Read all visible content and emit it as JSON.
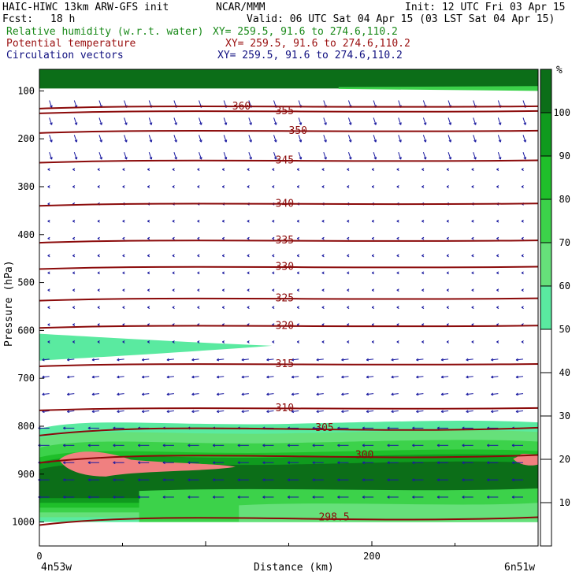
{
  "header": {
    "model": "HAIC-HIWC 13km ARW-GFS init",
    "institution": "NCAR/MMM",
    "init": "Init: 12 UTC Fri 03 Apr 15",
    "fcst_label": "Fcst:",
    "fcst_value": "18 h",
    "valid": "Valid: 06 UTC Sat 04 Apr 15 (03 LST Sat 04 Apr 15)",
    "fields": [
      {
        "label": "Relative humidity (w.r.t. water)",
        "xy": "XY= 259.5, 91.6 to 274.6,110.2",
        "color": "#1a8a1a"
      },
      {
        "label": "Potential temperature",
        "xy": "XY= 259.5, 91.6 to 274.6,110.2",
        "color": "#9a1010"
      },
      {
        "label": "Circulation vectors",
        "xy": "XY= 259.5, 91.6 to 274.6,110.2",
        "color": "#101080"
      }
    ]
  },
  "chart_data": {
    "type": "cross-section",
    "xlabel": "Distance (km)",
    "ylabel": "Pressure (hPa)",
    "x_range": [
      0,
      300
    ],
    "x_ticks": [
      0,
      200
    ],
    "y_range": [
      1050,
      55
    ],
    "y_ticks": [
      100,
      200,
      300,
      400,
      500,
      600,
      700,
      800,
      900,
      1000
    ],
    "y_scale": "linear, inverted",
    "left_endpoint": "4n53w",
    "right_endpoint": "6n51w",
    "colorbar": {
      "unit": "%",
      "ticks": [
        10,
        20,
        30,
        40,
        50,
        60,
        70,
        80,
        90,
        100
      ],
      "bands": [
        {
          "from": 50,
          "to": 60,
          "color": "#5aeaa0"
        },
        {
          "from": 60,
          "to": 70,
          "color": "#66e07a"
        },
        {
          "from": 70,
          "to": 80,
          "color": "#3cd24a"
        },
        {
          "from": 80,
          "to": 90,
          "color": "#1fbf2a"
        },
        {
          "from": 90,
          "to": 100,
          "color": "#0f9a1e"
        },
        {
          "from": 100,
          "to": 110,
          "color": "#0c6e18"
        },
        {
          "from": 110,
          "to": 200,
          "color": "#f08080"
        }
      ]
    },
    "theta_contours": [
      {
        "label": "360",
        "p": 132
      },
      {
        "label": "355",
        "p": 142
      },
      {
        "label": "350",
        "p": 183
      },
      {
        "label": "345",
        "p": 245
      },
      {
        "label": "340",
        "p": 335
      },
      {
        "label": "335",
        "p": 412
      },
      {
        "label": "330",
        "p": 467
      },
      {
        "label": "325",
        "p": 533
      },
      {
        "label": "320",
        "p": 590
      },
      {
        "label": "315",
        "p": 670
      },
      {
        "label": "310",
        "p": 762
      },
      {
        "label": "305",
        "p": 803
      },
      {
        "label": "300",
        "p": 860
      },
      {
        "label": "298.5",
        "p": 990
      }
    ],
    "rh_features": [
      {
        "level": "50-60",
        "p_top": 607,
        "p_bottom": 663,
        "x_end_km": 140,
        "note": "thin moist layer on left"
      },
      {
        "level": "50-110",
        "p_top": 790,
        "p_bottom": 1000,
        "note": "boundary layer moist region"
      },
      {
        "level": ">110",
        "p_top": 55,
        "p_bottom": 95,
        "note": "upper boundary band"
      }
    ],
    "grid": false,
    "legend": "colorbar right"
  }
}
